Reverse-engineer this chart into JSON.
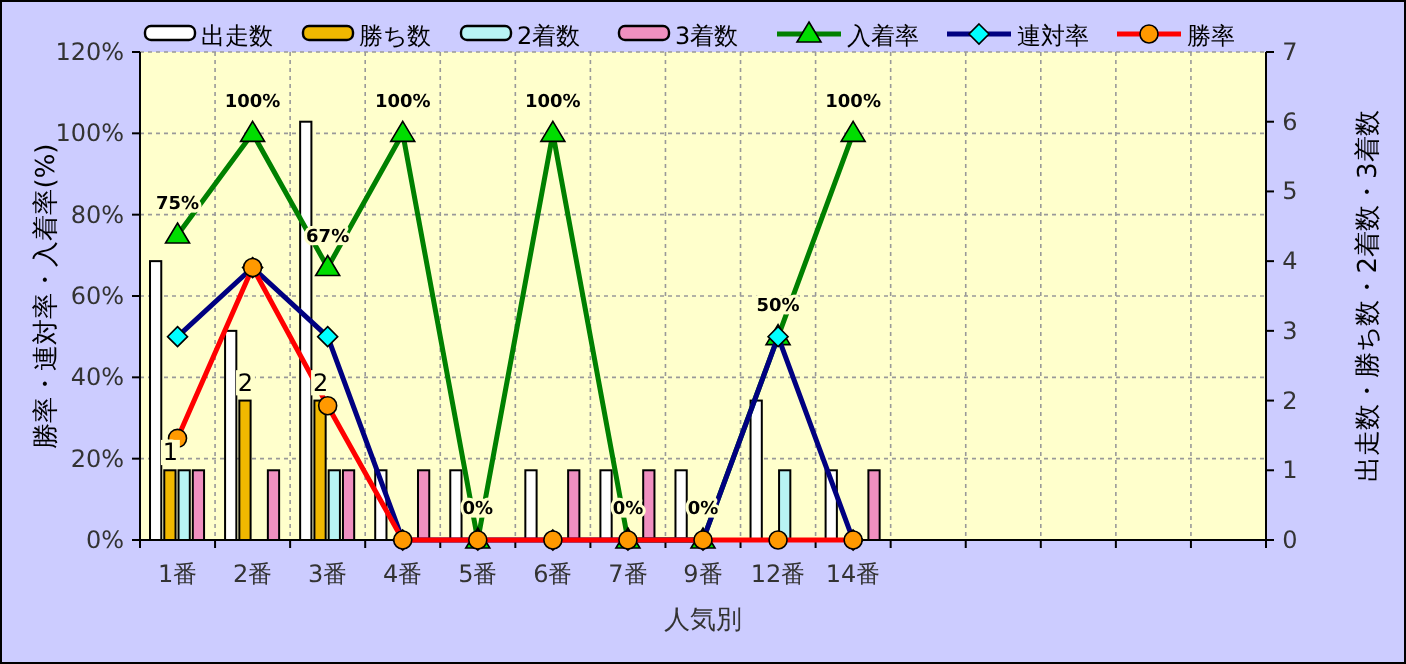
{
  "chart_data": {
    "type": "bar",
    "xlabel": "人気別",
    "ylabel": "勝率・連対率・入着率(%)",
    "y2label": "出走数・勝ち数・2着数・3着数",
    "categories": [
      "1番",
      "2番",
      "3番",
      "4番",
      "5番",
      "6番",
      "7番",
      "9番",
      "12番",
      "14番",
      null,
      null,
      null,
      null,
      null
    ],
    "series": [
      {
        "name": "出走数",
        "axis": "y2",
        "color": "#ffffff",
        "values": [
          4,
          3,
          6,
          1,
          1,
          1,
          1,
          1,
          2,
          1,
          null,
          null,
          null,
          null,
          null
        ]
      },
      {
        "name": "勝ち数",
        "axis": "y2",
        "color": "#f0b800",
        "values": [
          1,
          2,
          2,
          0,
          0,
          0,
          0,
          0,
          0,
          0,
          null,
          null,
          null,
          null,
          null
        ],
        "value_labels": [
          "1",
          "2",
          "2",
          null,
          null,
          null,
          null,
          null,
          null,
          null,
          null,
          null,
          null,
          null,
          null
        ]
      },
      {
        "name": "2着数",
        "axis": "y2",
        "color": "#b8f4f4",
        "values": [
          1,
          0,
          1,
          0,
          0,
          0,
          0,
          0,
          1,
          0,
          null,
          null,
          null,
          null,
          null
        ]
      },
      {
        "name": "3着数",
        "axis": "y2",
        "color": "#f090c0",
        "values": [
          1,
          1,
          1,
          1,
          0,
          1,
          1,
          0,
          0,
          1,
          null,
          null,
          null,
          null,
          null
        ]
      },
      {
        "name": "入着率",
        "type": "line",
        "color": "#008000",
        "marker": "triangle",
        "values": [
          75,
          100,
          67,
          100,
          0,
          100,
          0,
          0,
          50,
          100,
          null,
          null,
          null,
          null,
          null
        ],
        "value_labels": [
          "75%",
          "100%",
          "67%",
          "100%",
          "0%",
          "100%",
          "0%",
          "0%",
          "50%",
          "100%",
          null,
          null,
          null,
          null,
          null
        ]
      },
      {
        "name": "連対率",
        "type": "line",
        "color": "#000080",
        "marker": "diamond",
        "values": [
          50,
          67,
          50,
          0,
          0,
          0,
          0,
          0,
          50,
          0,
          null,
          null,
          null,
          null,
          null
        ]
      },
      {
        "name": "勝率",
        "type": "line",
        "color": "#ff0000",
        "marker": "circle",
        "values": [
          25,
          67,
          33,
          0,
          0,
          0,
          0,
          0,
          0,
          0,
          null,
          null,
          null,
          null,
          null
        ]
      }
    ],
    "ylim": [
      0,
      120
    ],
    "yticks": [
      {
        "value": 0,
        "label": "0%"
      },
      {
        "value": 20,
        "label": "20%"
      },
      {
        "value": 40,
        "label": "40%"
      },
      {
        "value": 60,
        "label": "60%"
      },
      {
        "value": 80,
        "label": "80%"
      },
      {
        "value": 100,
        "label": "100%"
      },
      {
        "value": 120,
        "label": "120%"
      }
    ],
    "y2lim": [
      0,
      7
    ],
    "y2ticks": [
      0,
      1,
      2,
      3,
      4,
      5,
      6,
      7
    ],
    "grid": true,
    "legend": "top"
  }
}
